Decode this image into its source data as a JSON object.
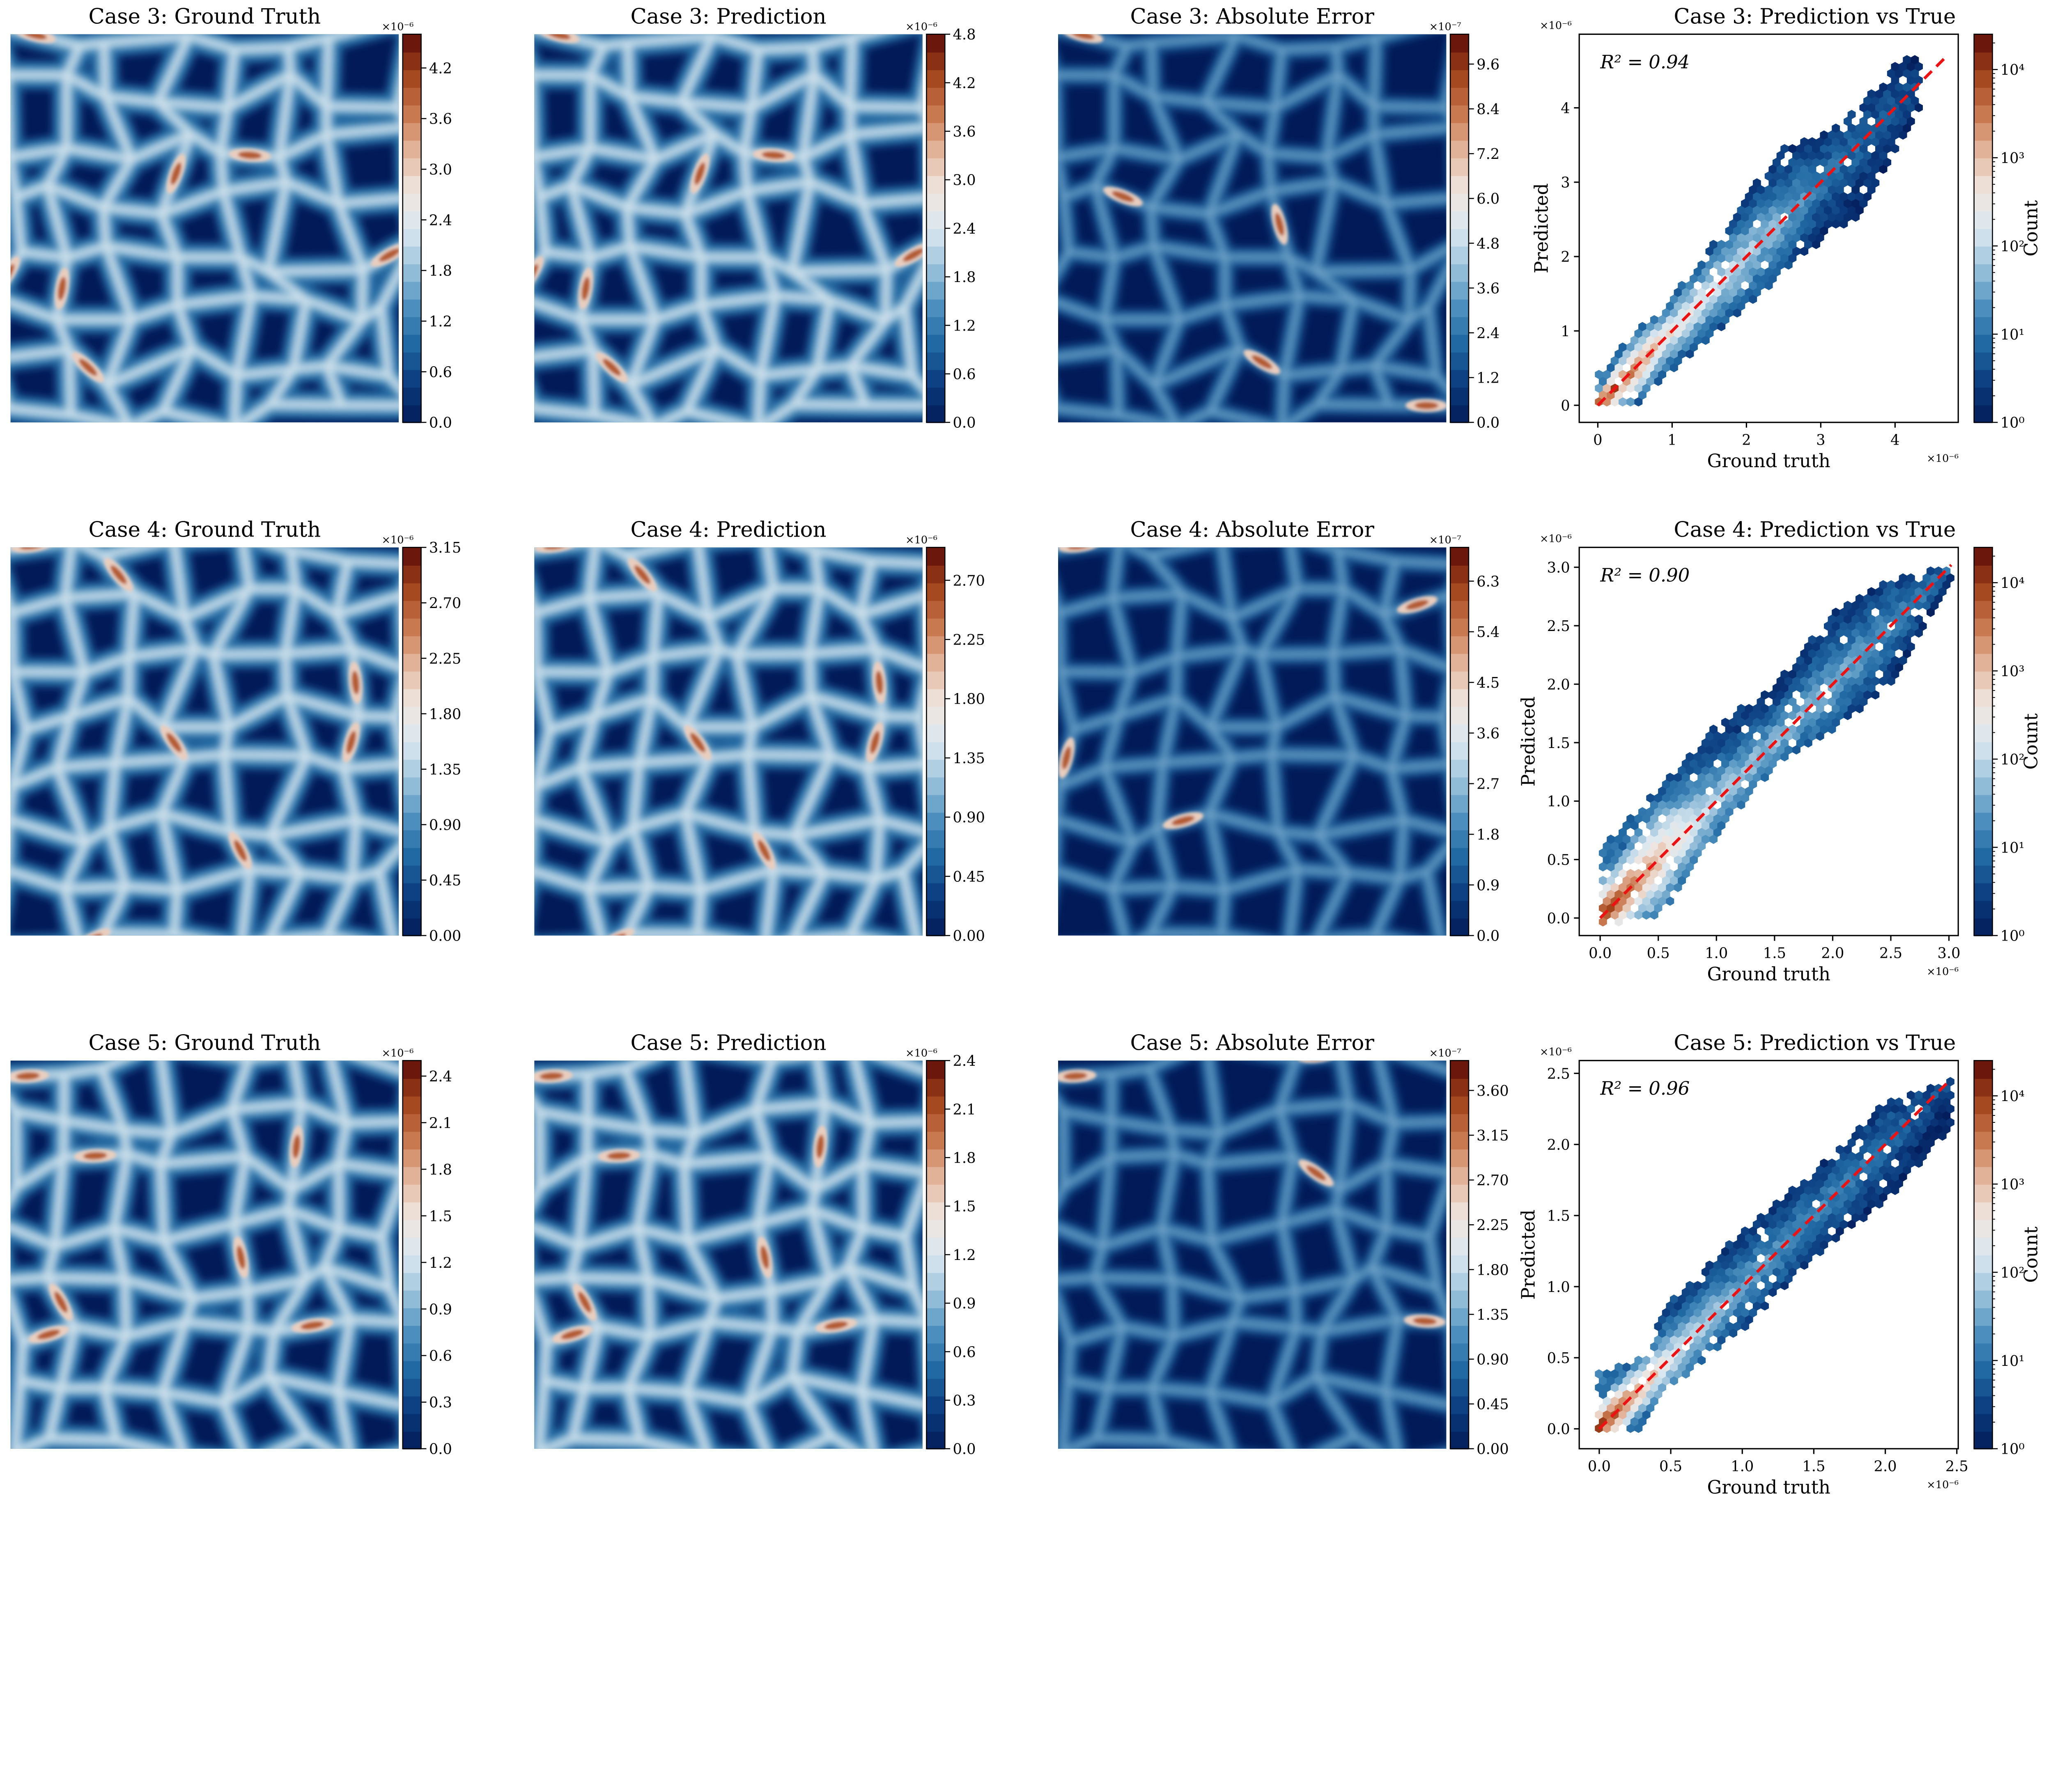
{
  "colormap": [
    "#031a58",
    "#0b3b7e",
    "#1f67a2",
    "#4e91bf",
    "#9cc3dc",
    "#dbe8f0",
    "#efe5df",
    "#e3b59c",
    "#c8764c",
    "#a0421a",
    "#5b0a06"
  ],
  "fit_line_color": "#ee1111",
  "chart_data": [
    {
      "type": "heatmap",
      "title": "Case 3: Ground Truth",
      "colorbar": {
        "ticks": [
          "0.0",
          "0.6",
          "1.2",
          "1.8",
          "2.4",
          "3.0",
          "3.6",
          "4.2"
        ],
        "tick_values": [
          0,
          0.6,
          1.2,
          1.8,
          2.4,
          3.0,
          3.6,
          4.2
        ],
        "range": [
          0,
          4.6
        ],
        "exponent": "×10⁻⁶"
      }
    },
    {
      "type": "heatmap",
      "title": "Case 3: Prediction",
      "colorbar": {
        "ticks": [
          "0.0",
          "0.6",
          "1.2",
          "1.8",
          "2.4",
          "3.0",
          "3.6",
          "4.2",
          "4.8"
        ],
        "tick_values": [
          0,
          0.6,
          1.2,
          1.8,
          2.4,
          3.0,
          3.6,
          4.2,
          4.8
        ],
        "range": [
          0,
          4.8
        ],
        "exponent": "×10⁻⁶"
      }
    },
    {
      "type": "heatmap",
      "title": "Case 3: Absolute Error",
      "colorbar": {
        "ticks": [
          "0.0",
          "1.2",
          "2.4",
          "3.6",
          "4.8",
          "6.0",
          "7.2",
          "8.4",
          "9.6"
        ],
        "tick_values": [
          0,
          1.2,
          2.4,
          3.6,
          4.8,
          6.0,
          7.2,
          8.4,
          9.6
        ],
        "range": [
          0,
          10.4
        ],
        "exponent": "×10⁻⁷"
      }
    },
    {
      "type": "scatter",
      "style": "hexbin",
      "title": "Case 3: Prediction vs True",
      "annotation": "R² = 0.94",
      "xlabel": "Ground truth",
      "ylabel": "Predicted",
      "x_exponent": "×10⁻⁶",
      "y_exponent": "×10⁻⁶",
      "xticks": [
        "0",
        "1",
        "2",
        "3",
        "4"
      ],
      "xtick_values": [
        0,
        1,
        2,
        3,
        4
      ],
      "yticks": [
        "0",
        "1",
        "2",
        "3",
        "4"
      ],
      "ytick_values": [
        0,
        1,
        2,
        3,
        4
      ],
      "xlim": [
        -0.25,
        4.85
      ],
      "ylim": [
        -0.23,
        4.99
      ],
      "ideal_line": [
        0,
        4.7
      ],
      "envelope": [
        [
          0,
          -0.05,
          0.4
        ],
        [
          0.5,
          0,
          1.0
        ],
        [
          1,
          0.45,
          1.45
        ],
        [
          1.5,
          0.9,
          2.1
        ],
        [
          2,
          1.3,
          2.8
        ],
        [
          2.5,
          1.8,
          3.5
        ],
        [
          3,
          2.2,
          3.6
        ],
        [
          3.5,
          2.5,
          4.0
        ],
        [
          4,
          3.3,
          4.6
        ],
        [
          4.3,
          4.0,
          4.7
        ]
      ],
      "log10_count_along_x": [
        [
          0,
          4.3
        ],
        [
          1,
          2.6
        ],
        [
          2,
          2.0
        ],
        [
          3,
          1.1
        ],
        [
          4.3,
          0.6
        ]
      ],
      "colorbar": {
        "label": "Count",
        "ticks": [
          "10⁰",
          "10¹",
          "10²",
          "10³",
          "10⁴"
        ],
        "log_range": [
          0,
          4.4
        ]
      }
    },
    {
      "type": "heatmap",
      "title": "Case 4: Ground Truth",
      "colorbar": {
        "ticks": [
          "0.00",
          "0.45",
          "0.90",
          "1.35",
          "1.80",
          "2.25",
          "2.70",
          "3.15"
        ],
        "tick_values": [
          0,
          0.45,
          0.9,
          1.35,
          1.8,
          2.25,
          2.7,
          3.15
        ],
        "range": [
          0,
          3.15
        ],
        "exponent": "×10⁻⁶"
      }
    },
    {
      "type": "heatmap",
      "title": "Case 4: Prediction",
      "colorbar": {
        "ticks": [
          "0.00",
          "0.45",
          "0.90",
          "1.35",
          "1.80",
          "2.25",
          "2.70"
        ],
        "tick_values": [
          0,
          0.45,
          0.9,
          1.35,
          1.8,
          2.25,
          2.7
        ],
        "range": [
          0,
          2.95
        ],
        "exponent": "×10⁻⁶"
      }
    },
    {
      "type": "heatmap",
      "title": "Case 4: Absolute Error",
      "colorbar": {
        "ticks": [
          "0.0",
          "0.9",
          "1.8",
          "2.7",
          "3.6",
          "4.5",
          "5.4",
          "6.3"
        ],
        "tick_values": [
          0,
          0.9,
          1.8,
          2.7,
          3.6,
          4.5,
          5.4,
          6.3
        ],
        "range": [
          0,
          6.9
        ],
        "exponent": "×10⁻⁷"
      }
    },
    {
      "type": "scatter",
      "style": "hexbin",
      "title": "Case 4: Prediction vs True",
      "annotation": "R² = 0.90",
      "xlabel": "Ground truth",
      "ylabel": "Predicted",
      "x_exponent": "×10⁻⁶",
      "y_exponent": "×10⁻⁶",
      "xticks": [
        "0.0",
        "0.5",
        "1.0",
        "1.5",
        "2.0",
        "2.5",
        "3.0"
      ],
      "xtick_values": [
        0,
        0.5,
        1,
        1.5,
        2,
        2.5,
        3
      ],
      "yticks": [
        "0.0",
        "0.5",
        "1.0",
        "1.5",
        "2.0",
        "2.5",
        "3.0"
      ],
      "ytick_values": [
        0,
        0.5,
        1,
        1.5,
        2,
        2.5,
        3
      ],
      "xlim": [
        -0.18,
        3.08
      ],
      "ylim": [
        -0.15,
        3.17
      ],
      "ideal_line": [
        0,
        3.02
      ],
      "envelope": [
        [
          0,
          -0.05,
          0.6
        ],
        [
          0.5,
          0,
          1.1
        ],
        [
          1,
          0.7,
          1.65
        ],
        [
          1.5,
          1.3,
          2.0
        ],
        [
          2,
          1.6,
          2.6
        ],
        [
          2.5,
          2.0,
          2.9
        ],
        [
          3,
          2.8,
          3.0
        ]
      ],
      "log10_count_along_x": [
        [
          0,
          4.3
        ],
        [
          1,
          1.9
        ],
        [
          2,
          1.6
        ],
        [
          3,
          1.0
        ]
      ],
      "colorbar": {
        "label": "Count",
        "ticks": [
          "10⁰",
          "10¹",
          "10²",
          "10³",
          "10⁴"
        ],
        "log_range": [
          0,
          4.4
        ]
      }
    },
    {
      "type": "heatmap",
      "title": "Case 5: Ground Truth",
      "colorbar": {
        "ticks": [
          "0.0",
          "0.3",
          "0.6",
          "0.9",
          "1.2",
          "1.5",
          "1.8",
          "2.1",
          "2.4"
        ],
        "tick_values": [
          0,
          0.3,
          0.6,
          0.9,
          1.2,
          1.5,
          1.8,
          2.1,
          2.4
        ],
        "range": [
          0,
          2.5
        ],
        "exponent": "×10⁻⁶"
      }
    },
    {
      "type": "heatmap",
      "title": "Case 5: Prediction",
      "colorbar": {
        "ticks": [
          "0.0",
          "0.3",
          "0.6",
          "0.9",
          "1.2",
          "1.5",
          "1.8",
          "2.1",
          "2.4"
        ],
        "tick_values": [
          0,
          0.3,
          0.6,
          0.9,
          1.2,
          1.5,
          1.8,
          2.1,
          2.4
        ],
        "range": [
          0,
          2.4
        ],
        "exponent": "×10⁻⁶"
      }
    },
    {
      "type": "heatmap",
      "title": "Case 5: Absolute Error",
      "colorbar": {
        "ticks": [
          "0.00",
          "0.45",
          "0.90",
          "1.35",
          "1.80",
          "2.25",
          "2.70",
          "3.15",
          "3.60"
        ],
        "tick_values": [
          0,
          0.45,
          0.9,
          1.35,
          1.8,
          2.25,
          2.7,
          3.15,
          3.6
        ],
        "range": [
          0,
          3.9
        ],
        "exponent": "×10⁻⁷"
      }
    },
    {
      "type": "scatter",
      "style": "hexbin",
      "title": "Case 5: Prediction vs True",
      "annotation": "R² = 0.96",
      "xlabel": "Ground truth",
      "ylabel": "Predicted",
      "x_exponent": "×10⁻⁶",
      "y_exponent": "×10⁻⁶",
      "xticks": [
        "0.0",
        "0.5",
        "1.0",
        "1.5",
        "2.0",
        "2.5"
      ],
      "xtick_values": [
        0,
        0.5,
        1,
        1.5,
        2,
        2.5
      ],
      "yticks": [
        "0.0",
        "0.5",
        "1.0",
        "1.5",
        "2.0",
        "2.5"
      ],
      "ytick_values": [
        0,
        0.5,
        1,
        1.5,
        2,
        2.5
      ],
      "xlim": [
        -0.14,
        2.51
      ],
      "ylim": [
        -0.14,
        2.59
      ],
      "ideal_line": [
        0,
        2.45
      ],
      "envelope": [
        [
          0,
          -0.03,
          0.4
        ],
        [
          0.3,
          0,
          0.5
        ],
        [
          0.5,
          0.3,
          0.9
        ],
        [
          1,
          0.7,
          1.4
        ],
        [
          1.5,
          1.2,
          1.8
        ],
        [
          2,
          1.6,
          2.3
        ],
        [
          2.45,
          2.1,
          2.45
        ]
      ],
      "log10_count_along_x": [
        [
          0,
          4.3
        ],
        [
          0.5,
          2.4
        ],
        [
          1,
          1.5
        ],
        [
          2,
          1.0
        ],
        [
          2.45,
          0.6
        ]
      ],
      "colorbar": {
        "label": "Count",
        "ticks": [
          "10⁰",
          "10¹",
          "10²",
          "10³",
          "10⁴"
        ],
        "log_range": [
          0,
          4.4
        ]
      }
    }
  ]
}
